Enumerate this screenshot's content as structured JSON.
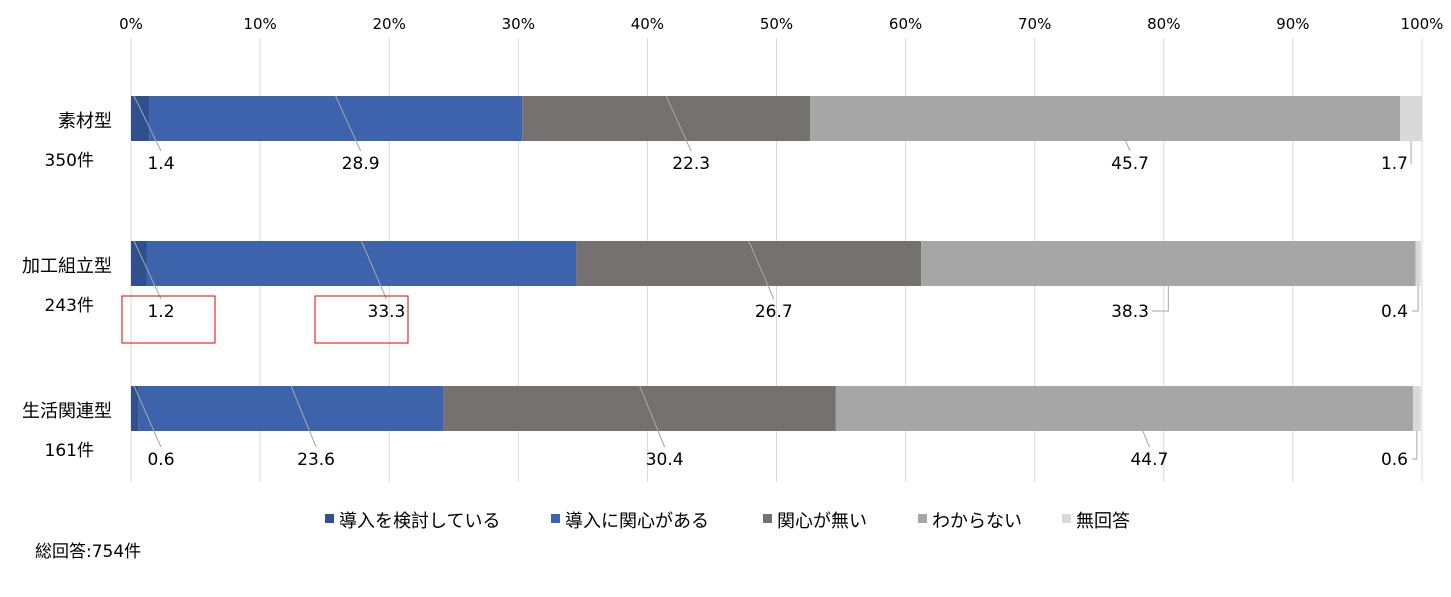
{
  "chart_data": {
    "type": "bar",
    "orientation": "horizontal",
    "stacked": "percent",
    "x_ticks": [
      "0%",
      "10%",
      "20%",
      "30%",
      "40%",
      "50%",
      "60%",
      "70%",
      "80%",
      "90%",
      "100%"
    ],
    "xlim": [
      0,
      100
    ],
    "grid": true,
    "legend_position": "bottom",
    "categories": [
      {
        "label": "素材型",
        "count": "350件"
      },
      {
        "label": "加工組立型",
        "count": "243件"
      },
      {
        "label": "生活関連型",
        "count": "161件"
      }
    ],
    "series": [
      {
        "name": "導入を検討している",
        "color": "#2f4f8f",
        "values": [
          1.4,
          1.2,
          0.6
        ]
      },
      {
        "name": "導入に関心がある",
        "color": "#3d63ad",
        "values": [
          28.9,
          33.3,
          23.6
        ]
      },
      {
        "name": "関心が無い",
        "color": "#767171",
        "values": [
          22.3,
          26.7,
          30.4
        ]
      },
      {
        "name": "わからない",
        "color": "#a6a6a6",
        "values": [
          45.7,
          38.3,
          44.7
        ]
      },
      {
        "name": "無回答",
        "color": "#d9d9d9",
        "values": [
          1.7,
          0.4,
          0.6
        ]
      }
    ],
    "highlighted_labels": [
      {
        "category": 1,
        "series": 0
      },
      {
        "category": 1,
        "series": 1
      }
    ],
    "highlight_color": "#e00000",
    "footnote": "総回答:754件"
  }
}
